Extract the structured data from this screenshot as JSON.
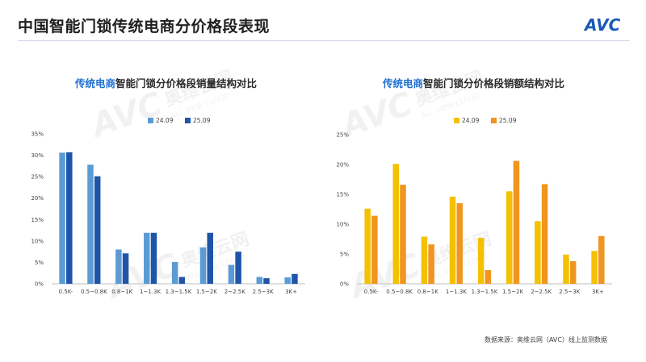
{
  "header": {
    "title": "中国智能门锁传统电商分价格段表现",
    "logo_text": "AVC"
  },
  "watermark": {
    "brand": "AVC",
    "cn": "奥维云网",
    "en": "ALL VIEW CLOUD"
  },
  "colors": {
    "left_24": "#5b9bd5",
    "left_25": "#1f55a8",
    "right_24": "#f5c000",
    "right_25": "#f0951e",
    "accent": "#1f6fd0"
  },
  "source": "数据来源：奥维云网（AVC）线上监测数据",
  "chart_data": [
    {
      "type": "bar",
      "title_highlight": "传统电商",
      "title_rest": "智能门锁分价格段销量结构对比",
      "categories": [
        "0.5K-",
        "0.5~0.8K",
        "0.8~1K",
        "1~1.3K",
        "1.3~1.5K",
        "1.5~2K",
        "2~2.5K",
        "2.5~3K",
        "3K+"
      ],
      "series": [
        {
          "name": "24.09",
          "values": [
            30.6,
            27.8,
            8.0,
            11.9,
            5.1,
            8.5,
            4.4,
            1.6,
            1.5
          ]
        },
        {
          "name": "25.09",
          "values": [
            30.7,
            25.1,
            7.1,
            11.9,
            1.6,
            11.9,
            7.5,
            1.3,
            2.3
          ]
        }
      ],
      "yticks": [
        "0%",
        "5%",
        "10%",
        "15%",
        "20%",
        "25%",
        "30%",
        "35%"
      ],
      "ylim": [
        0,
        35
      ],
      "legend": "top-center",
      "grid": false
    },
    {
      "type": "bar",
      "title_highlight": "传统电商",
      "title_rest": "智能门锁分价格段销额结构对比",
      "categories": [
        "0.5K-",
        "0.5~0.8K",
        "0.8~1K",
        "1~1.3K",
        "1.3~1.5K",
        "1.5~2K",
        "2~2.5K",
        "2.5~3K",
        "3K+"
      ],
      "series": [
        {
          "name": "24.09",
          "values": [
            12.6,
            20.1,
            7.9,
            14.6,
            7.7,
            15.5,
            10.5,
            4.9,
            5.5
          ]
        },
        {
          "name": "25.09",
          "values": [
            11.4,
            16.6,
            6.6,
            13.5,
            2.3,
            20.6,
            16.7,
            3.8,
            8.0
          ]
        }
      ],
      "yticks": [
        "0%",
        "5%",
        "10%",
        "15%",
        "20%",
        "25%"
      ],
      "ylim": [
        0,
        25
      ],
      "legend": "top-center",
      "grid": false
    }
  ]
}
